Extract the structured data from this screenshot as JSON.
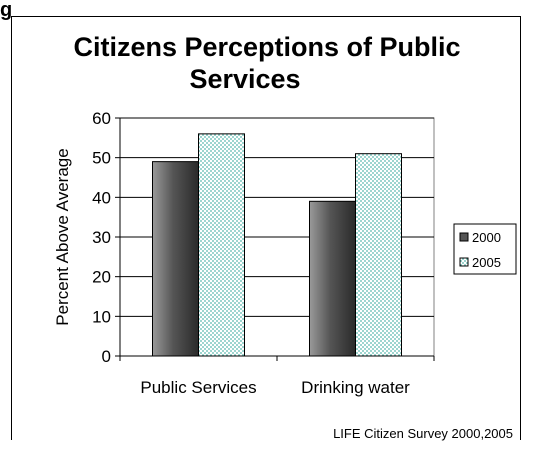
{
  "page_fragment": "g",
  "chart_data": {
    "type": "bar",
    "title_lines": [
      "Citizens Perceptions of Public",
      "Services"
    ],
    "ylabel": "Percent Above Average",
    "xlabel": "",
    "categories": [
      "Public Services",
      "Drinking water"
    ],
    "series": [
      {
        "name": "2000",
        "values": [
          49,
          39
        ],
        "color": "#555555",
        "pattern": "gradient-dark"
      },
      {
        "name": "2005",
        "values": [
          56,
          51
        ],
        "color": "#7fd7cf",
        "pattern": "dots-teal"
      }
    ],
    "ylim": [
      0,
      60
    ],
    "yticks": [
      0,
      10,
      20,
      30,
      40,
      50,
      60
    ],
    "grid": true,
    "legend_position": "right",
    "source": "LIFE Citizen Survey 2000,2005"
  }
}
